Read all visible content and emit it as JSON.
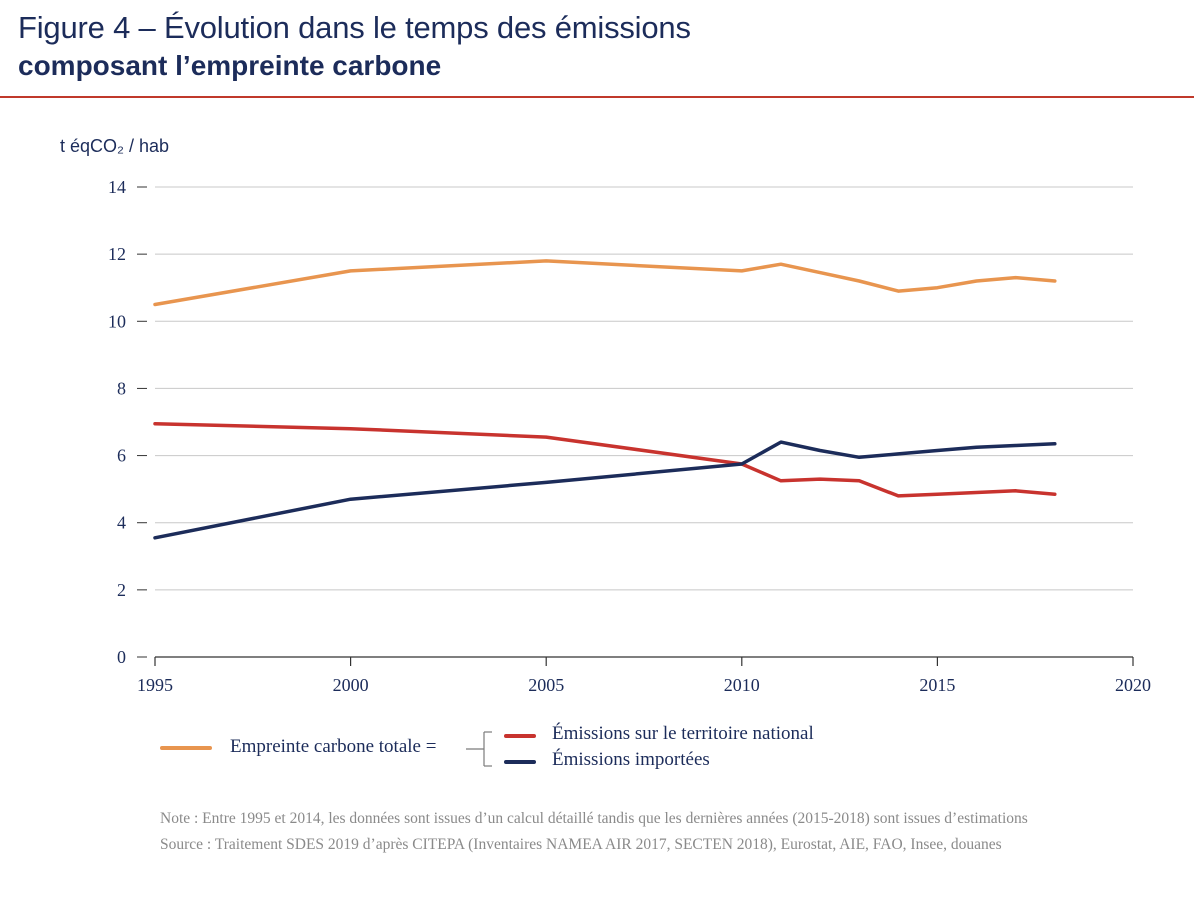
{
  "title": {
    "line1": "Figure 4 – Évolution dans le temps des émissions",
    "line2": "composant l’empreinte carbone"
  },
  "colors": {
    "title": "#1c2c5a",
    "rule": "#c0392b",
    "total": "#e8954f",
    "national": "#c8332e",
    "imported": "#1c2c5a",
    "grid": "#c8c8c8",
    "note": "#8a8a8a"
  },
  "chart_data": {
    "type": "line",
    "ylabel": "t éqCO₂ / hab",
    "xlim": [
      1995,
      2020
    ],
    "ylim": [
      0,
      14
    ],
    "x_ticks": [
      1995,
      2000,
      2005,
      2010,
      2015,
      2020
    ],
    "y_ticks": [
      0,
      2,
      4,
      6,
      8,
      10,
      12,
      14
    ],
    "grid": true,
    "legend_position": "bottom",
    "series": [
      {
        "name": "Empreinte carbone totale",
        "color": "#e8954f",
        "x": [
          1995,
          2000,
          2005,
          2010,
          2011,
          2012,
          2013,
          2014,
          2015,
          2016,
          2017,
          2018
        ],
        "values": [
          10.5,
          11.5,
          11.8,
          11.5,
          11.7,
          11.45,
          11.2,
          10.9,
          11.0,
          11.2,
          11.3,
          11.2
        ]
      },
      {
        "name": "Émissions sur le territoire national",
        "color": "#c8332e",
        "x": [
          1995,
          2000,
          2005,
          2010,
          2011,
          2012,
          2013,
          2014,
          2015,
          2016,
          2017,
          2018
        ],
        "values": [
          6.95,
          6.8,
          6.55,
          5.75,
          5.25,
          5.3,
          5.25,
          4.8,
          4.85,
          4.9,
          4.95,
          4.85
        ]
      },
      {
        "name": "Émissions importées",
        "color": "#1c2c5a",
        "x": [
          1995,
          2000,
          2005,
          2010,
          2011,
          2012,
          2013,
          2014,
          2015,
          2016,
          2017,
          2018
        ],
        "values": [
          3.55,
          4.7,
          5.2,
          5.75,
          6.4,
          6.15,
          5.95,
          6.05,
          6.15,
          6.25,
          6.3,
          6.35
        ]
      }
    ]
  },
  "legend": {
    "total_label": "Empreinte carbone totale =",
    "national_label": "Émissions sur le territoire national",
    "imported_label": "Émissions importées"
  },
  "note": {
    "line1": "Note : Entre 1995 et 2014, les données sont issues d’un calcul détaillé tandis que les dernières années (2015-2018) sont issues d’estimations",
    "line2": "Source : Traitement SDES 2019 d’après CITEPA (Inventaires NAMEA AIR 2017, SECTEN 2018), Eurostat, AIE, FAO, Insee, douanes"
  }
}
